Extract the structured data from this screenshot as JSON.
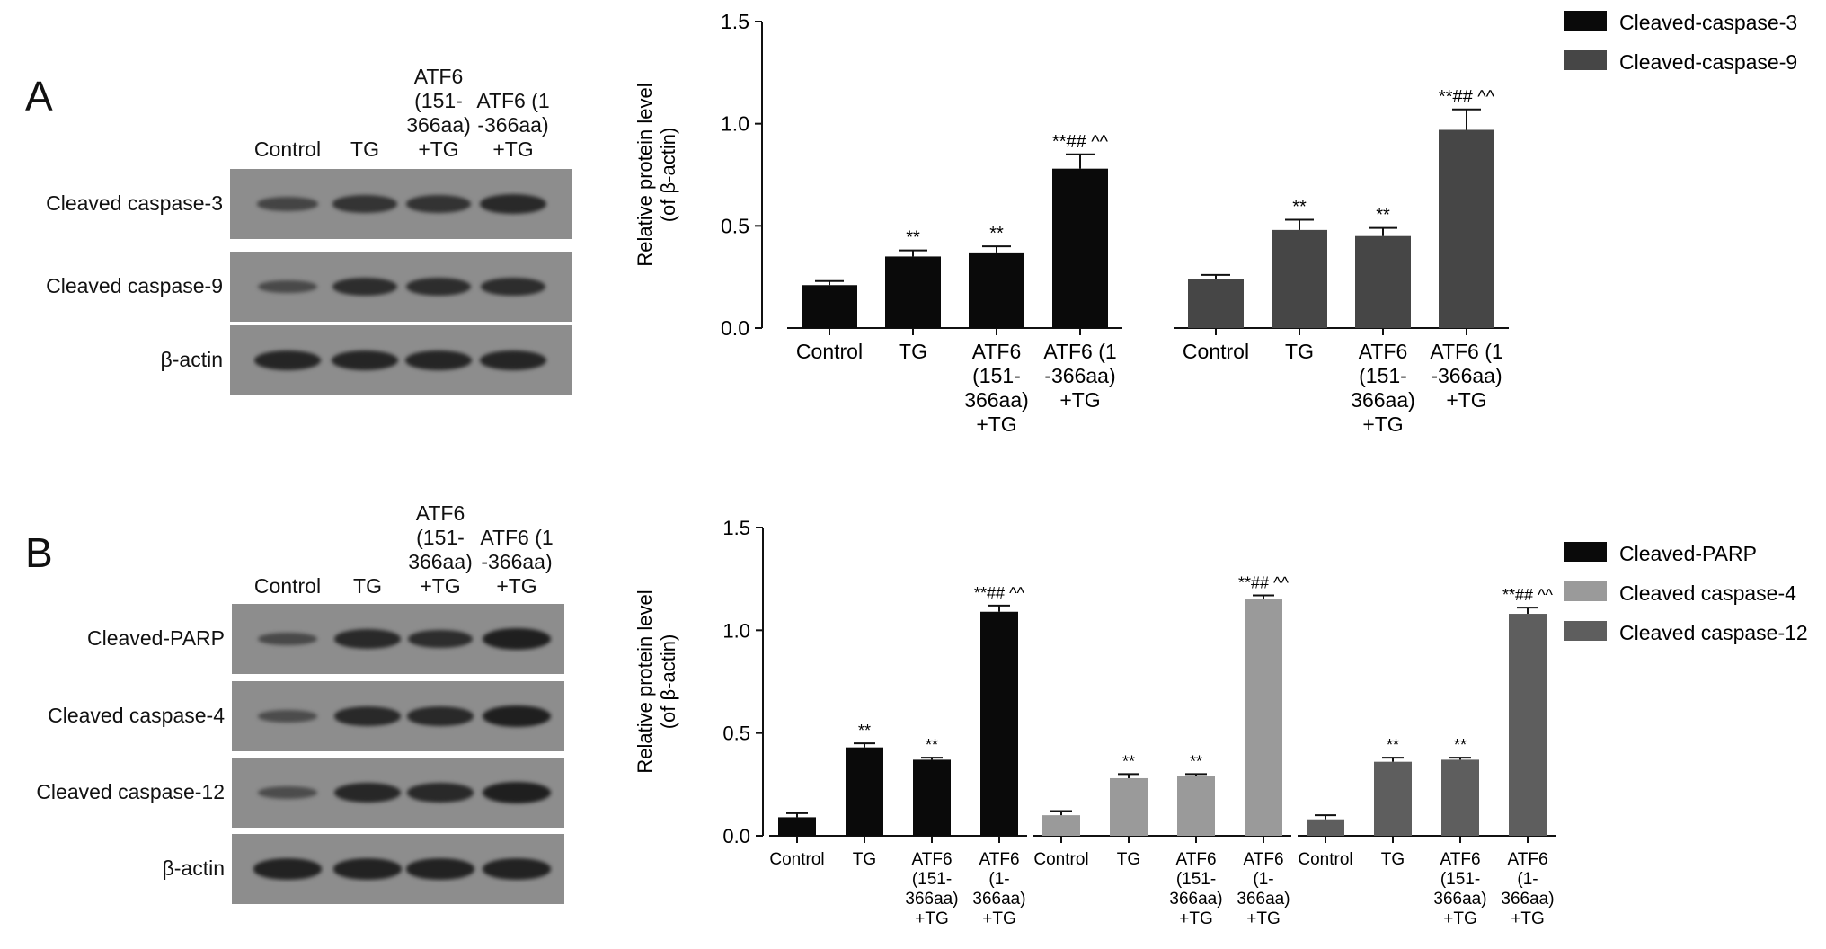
{
  "colors": {
    "black": "#0a0a0a",
    "dark_grey": "#464646",
    "light_grey": "#9a9a9a",
    "mid_grey": "#5e5e5e",
    "blot_bg": "#8d8d8d",
    "band": "#1e1e1e"
  },
  "panels": {
    "A": {
      "letter": "A",
      "lane_headers": [
        {
          "lines": [
            "Control"
          ]
        },
        {
          "lines": [
            "TG"
          ]
        },
        {
          "lines": [
            "ATF6",
            "(151-",
            "366aa)",
            "+TG"
          ]
        },
        {
          "lines": [
            "ATF6 (1",
            "-366aa)",
            "+TG"
          ]
        }
      ],
      "blots": [
        {
          "label": "Cleaved caspase-3",
          "intensity": [
            0.45,
            0.7,
            0.72,
            0.85
          ]
        },
        {
          "label": "Cleaved caspase-9",
          "intensity": [
            0.4,
            0.78,
            0.78,
            0.8
          ]
        },
        {
          "label": "β-actin",
          "intensity": [
            0.9,
            0.9,
            0.9,
            0.9
          ]
        }
      ]
    },
    "B": {
      "letter": "B",
      "lane_headers": [
        {
          "lines": [
            "Control"
          ]
        },
        {
          "lines": [
            "TG"
          ]
        },
        {
          "lines": [
            "ATF6",
            "(151-",
            "366aa)",
            "+TG"
          ]
        },
        {
          "lines": [
            "ATF6 (1",
            "-366aa)",
            "+TG"
          ]
        }
      ],
      "blots": [
        {
          "label": "Cleaved-PARP",
          "intensity": [
            0.4,
            0.85,
            0.8,
            1.0
          ]
        },
        {
          "label": "Cleaved caspase-4",
          "intensity": [
            0.35,
            0.85,
            0.85,
            1.0
          ]
        },
        {
          "label": "Cleaved caspase-12",
          "intensity": [
            0.35,
            0.88,
            0.85,
            1.0
          ]
        },
        {
          "label": "β-actin",
          "intensity": [
            0.95,
            0.95,
            0.95,
            0.95
          ]
        }
      ]
    }
  },
  "chart_data": [
    {
      "type": "bar",
      "panel": "A",
      "ylabel": [
        "Relative protein level",
        "(of β-actin)"
      ],
      "ylim": [
        0,
        1.5
      ],
      "yticks": [
        "0.0",
        "0.5",
        "1.0",
        "1.5"
      ],
      "legend_position": "top-right",
      "categories": [
        [
          "Control"
        ],
        [
          "TG"
        ],
        [
          "ATF6",
          "(151-",
          "366aa)",
          "+TG"
        ],
        [
          "ATF6 (1",
          "-366aa)",
          "+TG"
        ]
      ],
      "series": [
        {
          "name": "Cleaved-caspase-3",
          "color": "#0a0a0a",
          "values": [
            0.21,
            0.35,
            0.37,
            0.78
          ],
          "errors": [
            0.02,
            0.03,
            0.03,
            0.07
          ],
          "annotations": [
            "",
            "**",
            "**",
            "**## ^^"
          ]
        },
        {
          "name": "Cleaved-caspase-9",
          "color": "#464646",
          "values": [
            0.24,
            0.48,
            0.45,
            0.97
          ],
          "errors": [
            0.02,
            0.05,
            0.04,
            0.1
          ],
          "annotations": [
            "",
            "**",
            "**",
            "**## ^^"
          ]
        }
      ]
    },
    {
      "type": "bar",
      "panel": "B",
      "ylabel": [
        "Relative protein level",
        "(of β-actin)"
      ],
      "ylim": [
        0,
        1.5
      ],
      "yticks": [
        "0.0",
        "0.5",
        "1.0",
        "1.5"
      ],
      "legend_position": "top-right",
      "categories": [
        [
          "Control"
        ],
        [
          "TG"
        ],
        [
          "ATF6",
          "(151-",
          "366aa)",
          "+TG"
        ],
        [
          "ATF6",
          "(1-",
          "366aa)",
          "+TG"
        ]
      ],
      "series": [
        {
          "name": "Cleaved-PARP",
          "color": "#0a0a0a",
          "values": [
            0.09,
            0.43,
            0.37,
            1.09
          ],
          "errors": [
            0.02,
            0.02,
            0.01,
            0.03
          ],
          "annotations": [
            "",
            "**",
            "**",
            "**## ^^"
          ]
        },
        {
          "name": "Cleaved caspase-4",
          "color": "#9a9a9a",
          "values": [
            0.1,
            0.28,
            0.29,
            1.15
          ],
          "errors": [
            0.02,
            0.02,
            0.01,
            0.02
          ],
          "annotations": [
            "",
            "**",
            "**",
            "**## ^^"
          ]
        },
        {
          "name": "Cleaved caspase-12",
          "color": "#5e5e5e",
          "values": [
            0.08,
            0.36,
            0.37,
            1.08
          ],
          "errors": [
            0.02,
            0.02,
            0.01,
            0.03
          ],
          "annotations": [
            "",
            "**",
            "**",
            "**## ^^"
          ]
        }
      ]
    }
  ]
}
